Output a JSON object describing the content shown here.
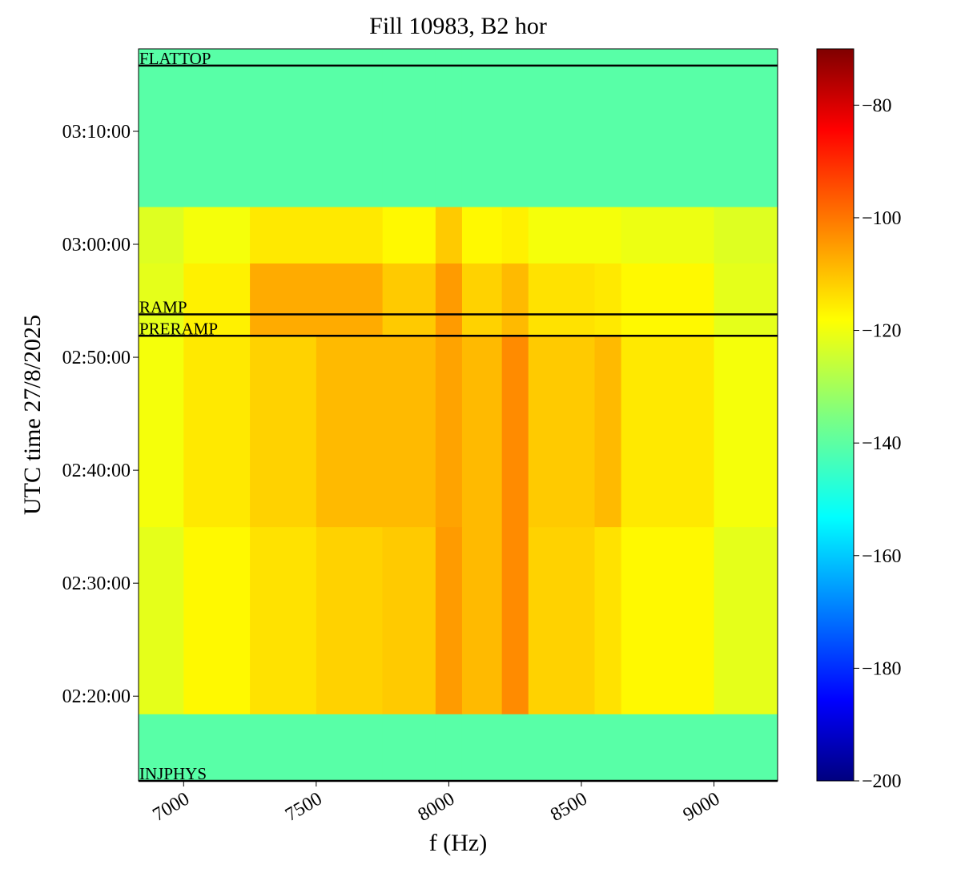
{
  "chart_data": {
    "type": "heatmap",
    "title": "Fill 10983, B2 hor",
    "x_label": "f (Hz)",
    "y_label": "UTC time 27/8/2025",
    "x_bins": [
      6830,
      7000,
      7250,
      7500,
      7750,
      7950,
      8050,
      8200,
      8300,
      8550,
      8650,
      9000,
      9240
    ],
    "y_bins": [
      7950,
      8306,
      9300,
      10314,
      10700,
      11000,
      11838
    ],
    "z": [
      [
        -140,
        -140,
        -140,
        -140,
        -140,
        -140,
        -140,
        -140,
        -140,
        -140,
        -140,
        -140
      ],
      [
        -122,
        -118,
        -115,
        -113,
        -112,
        -106,
        -110,
        -104,
        -113,
        -115,
        -118,
        -122
      ],
      [
        -120,
        -116,
        -113,
        -110,
        -110,
        -107,
        -110,
        -104,
        -112,
        -110,
        -116,
        -120
      ],
      [
        -122,
        -117,
        -108,
        -108,
        -112,
        -106,
        -113,
        -110,
        -115,
        -116,
        -118,
        -122
      ],
      [
        -123,
        -120,
        -116,
        -116,
        -118,
        -112,
        -118,
        -117,
        -120,
        -120,
        -121,
        -123
      ],
      [
        -140,
        -140,
        -140,
        -140,
        -140,
        -140,
        -140,
        -140,
        -140,
        -140,
        -140,
        -140
      ]
    ],
    "xlim": [
      6830,
      9240
    ],
    "xticks": [
      7000,
      7500,
      8000,
      8500,
      9000
    ],
    "ylim": [
      7950,
      11838
    ],
    "yticks": [
      {
        "value": 8400,
        "label": "02:20:00"
      },
      {
        "value": 9000,
        "label": "02:30:00"
      },
      {
        "value": 9600,
        "label": "02:40:00"
      },
      {
        "value": 10200,
        "label": "02:50:00"
      },
      {
        "value": 10800,
        "label": "03:00:00"
      },
      {
        "value": 11400,
        "label": "03:10:00"
      }
    ],
    "events": [
      {
        "name": "FLATTOP",
        "time": 11749
      },
      {
        "name": "RAMP",
        "time": 10428
      },
      {
        "name": "PRERAMP",
        "time": 10314
      },
      {
        "name": "INJPHYS",
        "time": 7950
      }
    ],
    "colormap": "jet",
    "clim": [
      -200,
      -70
    ],
    "cticks": [
      {
        "value": -200,
        "label": "−200"
      },
      {
        "value": -180,
        "label": "−180"
      },
      {
        "value": -160,
        "label": "−160"
      },
      {
        "value": -140,
        "label": "−140"
      },
      {
        "value": -120,
        "label": "−120"
      },
      {
        "value": -100,
        "label": "−100"
      },
      {
        "value": -80,
        "label": "−80"
      }
    ]
  }
}
